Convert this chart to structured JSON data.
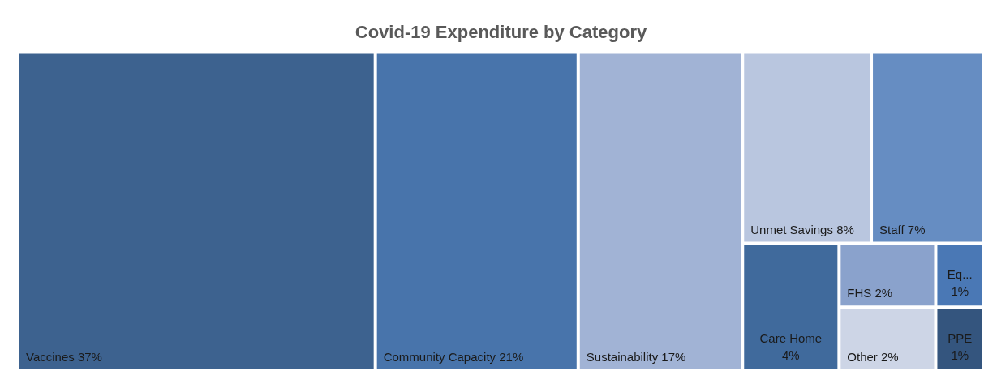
{
  "chart_data": {
    "type": "other",
    "title": "Covid-19 Expenditure by Category",
    "categories": [
      "Vaccines",
      "Community Capacity",
      "Sustainability",
      "Unmet Savings",
      "Staff",
      "Care Home",
      "FHS",
      "Other",
      "Eq...",
      "PPE"
    ],
    "values": [
      37,
      21,
      17,
      8,
      7,
      4,
      2,
      2,
      1,
      1
    ],
    "value_labels": [
      "37%",
      "21%",
      "17%",
      "8%",
      "7%",
      "4%",
      "2%",
      "2%",
      "1%",
      "1%"
    ],
    "colors": [
      "#3d628f",
      "#4874ab",
      "#a1b3d5",
      "#b9c6df",
      "#668dc2",
      "#406a9c",
      "#8aa2cc",
      "#cdd5e6",
      "#4a78b5",
      "#34557e"
    ]
  }
}
